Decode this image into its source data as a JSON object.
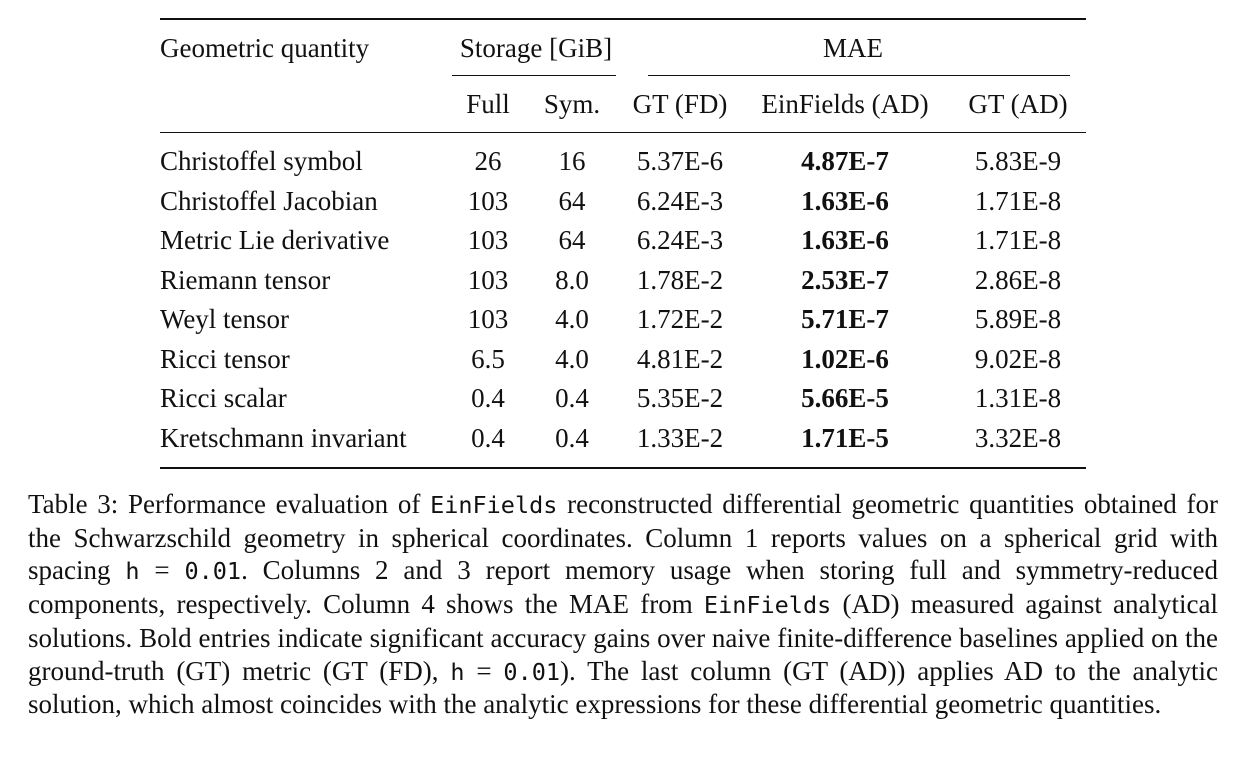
{
  "table": {
    "header": {
      "quantity_label": "Geometric quantity",
      "storage_label": "Storage [GiB]",
      "mae_label": "MAE",
      "sub_full": "Full",
      "sub_sym": "Sym.",
      "sub_gt_fd": "GT (FD)",
      "sub_einfields_ad": "EinFields (AD)",
      "sub_gt_ad": "GT (AD)"
    },
    "rows": [
      {
        "name": "Christoffel symbol",
        "full": "26",
        "sym": "16",
        "gt_fd": "5.37E-6",
        "einfields_ad": "4.87E-7",
        "gt_ad": "5.83E-9"
      },
      {
        "name": "Christoffel Jacobian",
        "full": "103",
        "sym": "64",
        "gt_fd": "6.24E-3",
        "einfields_ad": "1.63E-6",
        "gt_ad": "1.71E-8"
      },
      {
        "name": "Metric Lie derivative",
        "full": "103",
        "sym": "64",
        "gt_fd": "6.24E-3",
        "einfields_ad": "1.63E-6",
        "gt_ad": "1.71E-8"
      },
      {
        "name": "Riemann tensor",
        "full": "103",
        "sym": "8.0",
        "gt_fd": "1.78E-2",
        "einfields_ad": "2.53E-7",
        "gt_ad": "2.86E-8"
      },
      {
        "name": "Weyl tensor",
        "full": "103",
        "sym": "4.0",
        "gt_fd": "1.72E-2",
        "einfields_ad": "5.71E-7",
        "gt_ad": "5.89E-8"
      },
      {
        "name": "Ricci tensor",
        "full": "6.5",
        "sym": "4.0",
        "gt_fd": "4.81E-2",
        "einfields_ad": "1.02E-6",
        "gt_ad": "9.02E-8"
      },
      {
        "name": "Ricci scalar",
        "full": "0.4",
        "sym": "0.4",
        "gt_fd": "5.35E-2",
        "einfields_ad": "5.66E-5",
        "gt_ad": "1.31E-8"
      },
      {
        "name": "Kretschmann invariant",
        "full": "0.4",
        "sym": "0.4",
        "gt_fd": "1.33E-2",
        "einfields_ad": "1.71E-5",
        "gt_ad": "3.32E-8"
      }
    ]
  },
  "caption": {
    "p1": "Table 3: Performance evaluation of ",
    "einfields_1": "EinFields",
    "p2": " reconstructed differential geometric quantities obtained for the Schwarzschild geometry in spherical coordinates. Column 1 reports values on a spherical grid with spacing ",
    "h_1": "h",
    "eq_1": " = ",
    "val_1": "0.01",
    "p3": ". Columns 2 and 3 report memory usage when storing full and symmetry-reduced components, respectively. Column 4 shows the MAE from ",
    "einfields_2": "EinFields",
    "p4": " (AD) measured against analytical solutions. Bold entries indicate significant accuracy gains over naive finite-difference baselines applied on the ground-truth (GT) metric (GT (FD), ",
    "h_2": "h",
    "eq_2": " = ",
    "val_2": "0.01",
    "p5": "). The last column (GT (AD)) applies AD to the analytic solution, which almost coincides with the analytic expressions for these differential geometric quantities."
  }
}
